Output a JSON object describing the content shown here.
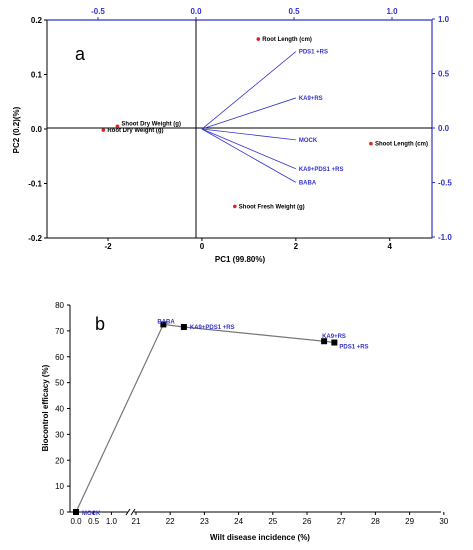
{
  "chart_data": [
    {
      "type": "scatter",
      "panel_label": "a",
      "xlabel": "PC1 (99.80%)",
      "ylabel": "PC2 (0.2)(%)",
      "xlim": [
        -3.3,
        4.9
      ],
      "ylim": [
        -0.2,
        0.2
      ],
      "x_ticks": [
        "-2",
        "0",
        "2",
        "4"
      ],
      "y_ticks": [
        "0.2",
        "0.1",
        "0.0",
        "-0.1",
        "-0.2"
      ],
      "top_ticks": [
        "-0.5",
        "0.0",
        "0.5",
        "1.0"
      ],
      "right_ticks": [
        "1.0",
        "0.5",
        "0.0",
        "-0.5",
        "-1.0"
      ],
      "points": [
        {
          "label": "Root Length (cm)",
          "x": 1.2,
          "y": 0.165
        },
        {
          "label": "Shoot Dry Weight (g)",
          "x": -1.8,
          "y": 0.005
        },
        {
          "label": "Root Dry Weight (g)",
          "x": -2.1,
          "y": -0.002
        },
        {
          "label": "Shoot Length (cm)",
          "x": 3.6,
          "y": -0.027
        },
        {
          "label": "Shoot Fresh Weight (g)",
          "x": 0.7,
          "y": -0.142
        }
      ],
      "vectors": [
        {
          "label": "PDS1 +RS",
          "x": 2.0,
          "y": 0.142
        },
        {
          "label": "KA9+RS",
          "x": 2.0,
          "y": 0.057
        },
        {
          "label": "MOCK",
          "x": 2.0,
          "y": -0.02
        },
        {
          "label": "KA9+PDS1 +RS",
          "x": 2.0,
          "y": -0.073
        },
        {
          "label": "BABA",
          "x": 2.0,
          "y": -0.098
        }
      ],
      "point_color": "#dd2222",
      "vector_color": "#3333cc"
    },
    {
      "type": "line",
      "panel_label": "b",
      "xlabel": "Wilt disease incidence (%)",
      "ylabel": "Biocontrol efficacy (%)",
      "ylim": [
        0,
        80
      ],
      "y_ticks": [
        "0",
        "10",
        "20",
        "30",
        "40",
        "50",
        "60",
        "70",
        "80"
      ],
      "x_ticks_left": [
        "0.0",
        "0.5",
        "1.0"
      ],
      "x_ticks_right": [
        "21",
        "22",
        "23",
        "24",
        "25",
        "26",
        "27",
        "28",
        "29",
        "30"
      ],
      "points": [
        {
          "label": "MOCK",
          "x": 0.0,
          "y": 0
        },
        {
          "label": "BABA",
          "x": 21.8,
          "y": 72.5
        },
        {
          "label": "KA9+PDS1 +RS",
          "x": 22.4,
          "y": 71.5
        },
        {
          "label": "KA9+RS",
          "x": 26.5,
          "y": 66
        },
        {
          "label": "PDS1 +RS",
          "x": 26.8,
          "y": 65.5
        }
      ],
      "line_color": "#777777",
      "label_color": "#3333cc"
    }
  ]
}
